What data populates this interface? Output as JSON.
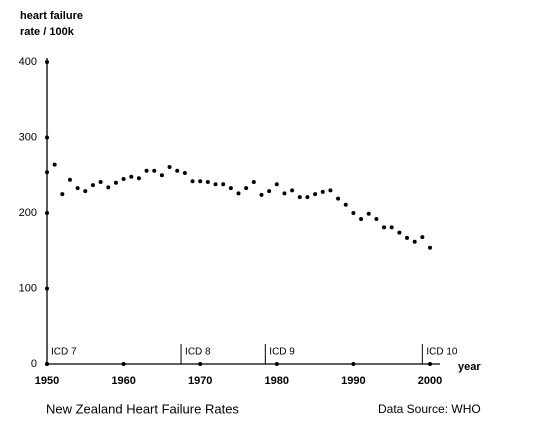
{
  "chart_data": {
    "type": "scatter",
    "title": "New Zealand Heart Failure Rates",
    "source": "Data Source: WHO",
    "ylabel": [
      "heart failure",
      "rate / 100k"
    ],
    "xlabel": "year",
    "x": [
      1950,
      1951,
      1952,
      1953,
      1954,
      1955,
      1956,
      1957,
      1958,
      1959,
      1960,
      1961,
      1962,
      1963,
      1964,
      1965,
      1966,
      1967,
      1968,
      1969,
      1970,
      1971,
      1972,
      1973,
      1974,
      1975,
      1976,
      1977,
      1978,
      1979,
      1980,
      1981,
      1982,
      1983,
      1984,
      1985,
      1986,
      1987,
      1988,
      1989,
      1990,
      1991,
      1992,
      1993,
      1994,
      1995,
      1996,
      1997,
      1998,
      1999,
      2000
    ],
    "values": [
      254,
      264,
      225,
      244,
      233,
      229,
      237,
      241,
      234,
      240,
      245,
      248,
      246,
      256,
      256,
      250,
      261,
      256,
      253,
      242,
      242,
      241,
      238,
      238,
      233,
      226,
      233,
      241,
      224,
      229,
      238,
      226,
      230,
      221,
      221,
      225,
      228,
      230,
      219,
      211,
      200,
      192,
      199,
      192,
      181,
      181,
      174,
      167,
      162,
      168,
      154
    ],
    "color": "#000000",
    "xlim": [
      1950,
      2000
    ],
    "xticks": [
      1950,
      1960,
      1970,
      1980,
      1990,
      2000
    ],
    "ylim": [
      0,
      400
    ],
    "yticks": [
      0,
      100,
      200,
      300,
      400
    ],
    "annotations": [
      {
        "x": 1950,
        "label": "ICD 7"
      },
      {
        "x": 1967.5,
        "label": "ICD 8"
      },
      {
        "x": 1978.5,
        "label": "ICD 9"
      },
      {
        "x": 1999,
        "label": "ICD 10"
      }
    ]
  }
}
